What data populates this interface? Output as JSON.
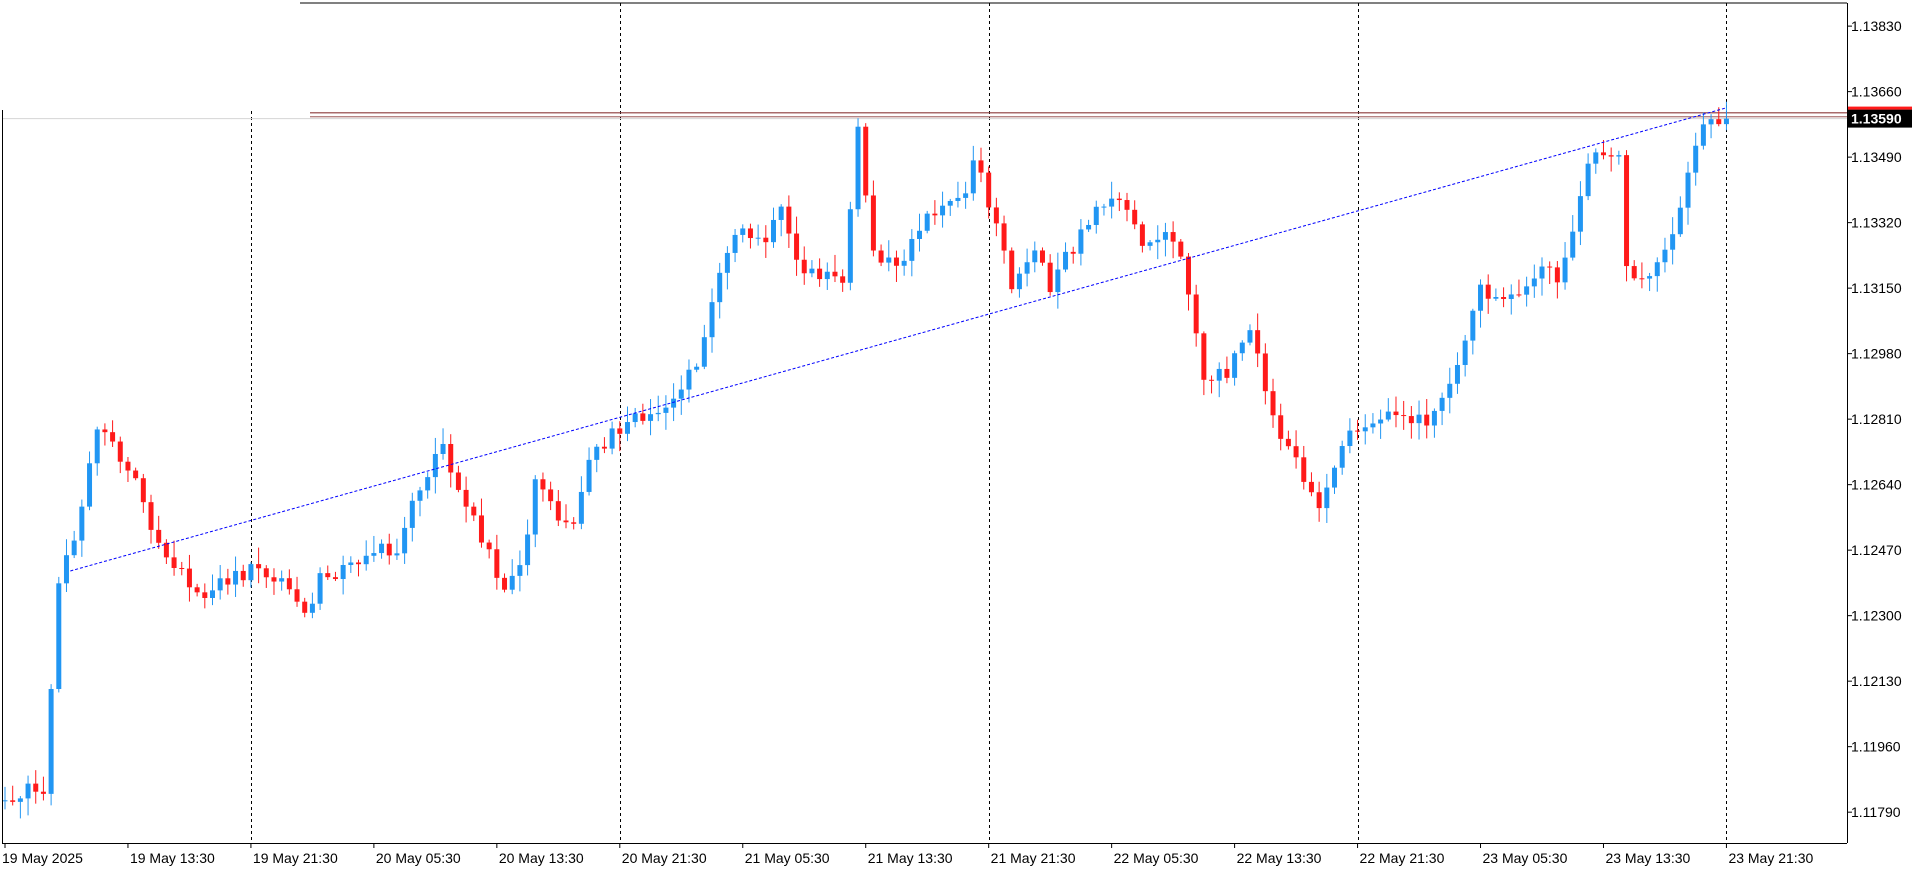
{
  "colors": {
    "background": "#ffffff",
    "frame": "#000000",
    "bull": "#2196f3",
    "bear": "#ff1a1a",
    "trendline": "#0000ff",
    "level_line": "#8b3a3a",
    "bid_line": "#d4d4d4",
    "price_label_bg": "#000000",
    "price_label_text": "#ffffff",
    "separator": "#000000"
  },
  "chart_data": {
    "type": "candlestick",
    "instrument_timeframe": "M30",
    "y_ticks": [
      "1.13830",
      "1.13660",
      "1.13490",
      "1.13320",
      "1.13150",
      "1.12980",
      "1.12810",
      "1.12640",
      "1.12470",
      "1.12300",
      "1.12130",
      "1.11960",
      "1.11790"
    ],
    "ylim": [
      1.1171,
      1.1389
    ],
    "x_ticks": [
      {
        "bar": 0,
        "label": "19 May 2025"
      },
      {
        "bar": 16,
        "label": "19 May 13:30"
      },
      {
        "bar": 32,
        "label": "19 May 21:30"
      },
      {
        "bar": 48,
        "label": "20 May 05:30"
      },
      {
        "bar": 64,
        "label": "20 May 13:30"
      },
      {
        "bar": 80,
        "label": "20 May 21:30"
      },
      {
        "bar": 96,
        "label": "21 May 05:30"
      },
      {
        "bar": 112,
        "label": "21 May 13:30"
      },
      {
        "bar": 128,
        "label": "21 May 21:30"
      },
      {
        "bar": 144,
        "label": "22 May 05:30"
      },
      {
        "bar": 160,
        "label": "22 May 13:30"
      },
      {
        "bar": 176,
        "label": "22 May 21:30"
      },
      {
        "bar": 192,
        "label": "23 May 05:30"
      },
      {
        "bar": 208,
        "label": "23 May 13:30"
      },
      {
        "bar": 224,
        "label": "23 May 21:30"
      }
    ],
    "day_separators": [
      32,
      80,
      128,
      176,
      224
    ],
    "current_price": "1.13590",
    "horizontal_level": 1.13605,
    "trendline": {
      "from": {
        "bar": 8.5,
        "price": 1.12416
      },
      "to": {
        "bar": 224,
        "price": 1.13618
      }
    },
    "waypoints": [
      [
        0,
        1.1182
      ],
      [
        3,
        1.1184
      ],
      [
        6,
        1.1186
      ],
      [
        8,
        1.1238
      ],
      [
        10,
        1.125
      ],
      [
        13,
        1.1278
      ],
      [
        15,
        1.1276
      ],
      [
        18,
        1.1264
      ],
      [
        21,
        1.1248
      ],
      [
        24,
        1.124
      ],
      [
        27,
        1.1236
      ],
      [
        30,
        1.124
      ],
      [
        33,
        1.1242
      ],
      [
        37,
        1.1238
      ],
      [
        40,
        1.123
      ],
      [
        42,
        1.124
      ],
      [
        46,
        1.1243
      ],
      [
        50,
        1.1248
      ],
      [
        52,
        1.1244
      ],
      [
        54,
        1.1258
      ],
      [
        56,
        1.1266
      ],
      [
        58,
        1.1274
      ],
      [
        61,
        1.1258
      ],
      [
        64,
        1.1246
      ],
      [
        66,
        1.1236
      ],
      [
        68,
        1.1242
      ],
      [
        70,
        1.1264
      ],
      [
        73,
        1.1256
      ],
      [
        75,
        1.1256
      ],
      [
        77,
        1.127
      ],
      [
        80,
        1.1278
      ],
      [
        83,
        1.1282
      ],
      [
        86,
        1.1282
      ],
      [
        88,
        1.1288
      ],
      [
        91,
        1.1296
      ],
      [
        93,
        1.131
      ],
      [
        95,
        1.1324
      ],
      [
        97,
        1.133
      ],
      [
        100,
        1.1328
      ],
      [
        102,
        1.1338
      ],
      [
        104,
        1.1322
      ],
      [
        107,
        1.1318
      ],
      [
        110,
        1.1316
      ],
      [
        112,
        1.1356
      ],
      [
        114,
        1.1324
      ],
      [
        117,
        1.132
      ],
      [
        121,
        1.1334
      ],
      [
        124,
        1.1338
      ],
      [
        126,
        1.134
      ],
      [
        127,
        1.135
      ],
      [
        130,
        1.133
      ],
      [
        132,
        1.1316
      ],
      [
        135,
        1.1324
      ],
      [
        137,
        1.1316
      ],
      [
        140,
        1.1326
      ],
      [
        143,
        1.1336
      ],
      [
        146,
        1.1338
      ],
      [
        149,
        1.1328
      ],
      [
        152,
        1.133
      ],
      [
        154,
        1.1322
      ],
      [
        157,
        1.1292
      ],
      [
        160,
        1.1292
      ],
      [
        163,
        1.1306
      ],
      [
        165,
        1.1288
      ],
      [
        167,
        1.1276
      ],
      [
        170,
        1.1266
      ],
      [
        172,
        1.1256
      ],
      [
        174,
        1.127
      ],
      [
        176,
        1.1278
      ],
      [
        179,
        1.128
      ],
      [
        181,
        1.1282
      ],
      [
        184,
        1.128
      ],
      [
        187,
        1.1282
      ],
      [
        189,
        1.129
      ],
      [
        191,
        1.1302
      ],
      [
        193,
        1.1314
      ],
      [
        195,
        1.1312
      ],
      [
        198,
        1.1312
      ],
      [
        201,
        1.1322
      ],
      [
        203,
        1.1318
      ],
      [
        205,
        1.133
      ],
      [
        207,
        1.1346
      ],
      [
        209,
        1.135
      ],
      [
        211,
        1.1348
      ],
      [
        212,
        1.1322
      ],
      [
        214,
        1.1316
      ],
      [
        216,
        1.132
      ],
      [
        218,
        1.133
      ],
      [
        220,
        1.1346
      ],
      [
        222,
        1.1356
      ],
      [
        224,
        1.1359
      ]
    ]
  }
}
